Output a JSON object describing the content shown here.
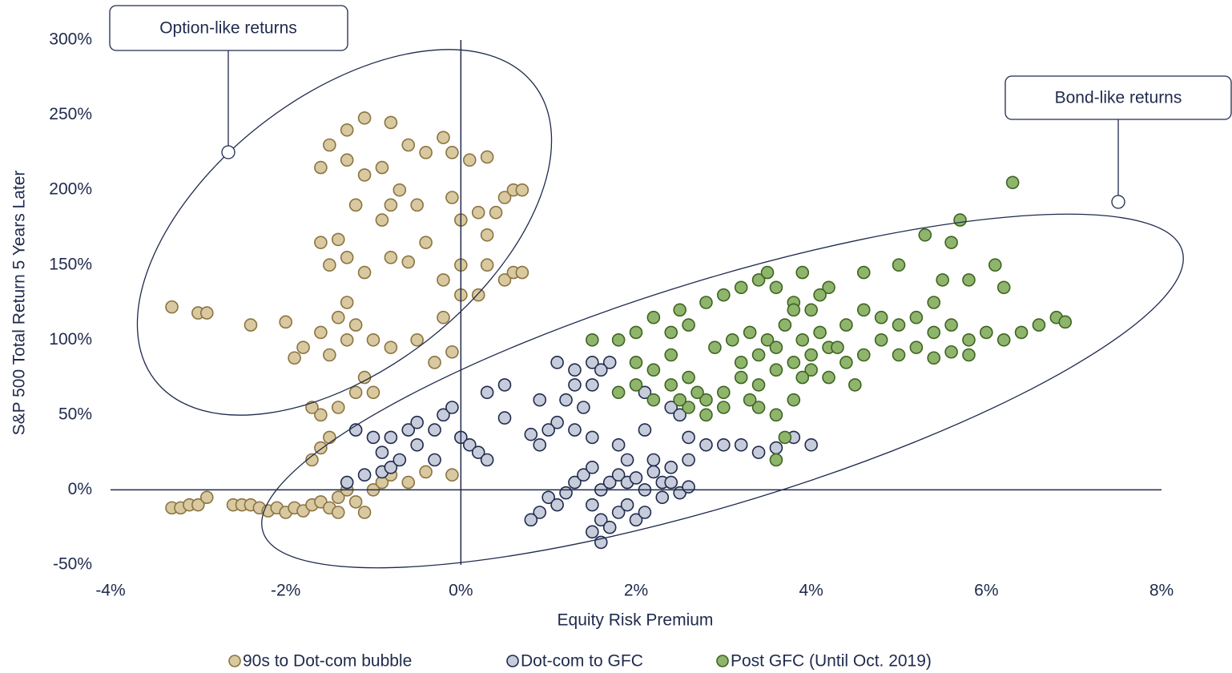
{
  "chart_data": {
    "type": "scatter",
    "x_label": "Equity Risk Premium",
    "y_label": "S&P 500 Total Return 5 Years Later",
    "annotations": [
      "Option-like returns",
      "Bond-like returns"
    ],
    "legend": "bottom",
    "xlim": [
      -4,
      8
    ],
    "ylim": [
      -50,
      300
    ],
    "xticks": [
      {
        "value": -4,
        "label": "-4%"
      },
      {
        "value": -2,
        "label": "-2%"
      },
      {
        "value": 0,
        "label": "0%"
      },
      {
        "value": 2,
        "label": "2%"
      },
      {
        "value": 4,
        "label": "4%"
      },
      {
        "value": 6,
        "label": "6%"
      },
      {
        "value": 8,
        "label": "8%"
      }
    ],
    "yticks": [
      {
        "value": -50,
        "label": "-50%"
      },
      {
        "value": 0,
        "label": "0%"
      },
      {
        "value": 50,
        "label": "50%"
      },
      {
        "value": 100,
        "label": "100%"
      },
      {
        "value": 150,
        "label": "150%"
      },
      {
        "value": 200,
        "label": "200%"
      },
      {
        "value": 250,
        "label": "250%"
      },
      {
        "value": 300,
        "label": "300%"
      }
    ],
    "series": [
      {
        "name": "90s to Dot-com bubble",
        "color": "#d9c9a0",
        "edge_color": "#8b7340",
        "x": [
          -3.3,
          -3.2,
          -3.1,
          -3.0,
          -2.9,
          -2.6,
          -2.5,
          -2.4,
          -2.3,
          -2.2,
          -2.1,
          -2.0,
          -1.9,
          -1.8,
          -1.7,
          -1.6,
          -1.5,
          -1.4,
          -1.4,
          -1.3,
          -1.2,
          -1.1,
          -1.0,
          -0.9,
          -0.8,
          -0.6,
          -0.4,
          -0.1,
          -1.7,
          -1.6,
          -1.5,
          -1.6,
          -1.4,
          -1.7,
          -1.2,
          -1.0,
          -1.1,
          -1.5,
          -1.8,
          -1.9,
          -1.6,
          -1.3,
          -1.0,
          -0.8,
          -0.5,
          -0.3,
          -0.1,
          -0.2,
          -1.4,
          -1.3,
          -1.2,
          -2.4,
          -3.3,
          -3.0,
          -2.9,
          -2.0,
          -1.5,
          -1.3,
          -1.1,
          -0.8,
          -0.6,
          -0.4,
          -1.6,
          -1.4,
          -0.7,
          -0.9,
          -1.1,
          -1.3,
          -1.6,
          -1.5,
          -1.3,
          -1.1,
          -0.8,
          -0.6,
          -0.4,
          -0.2,
          -0.1,
          0.1,
          0.3,
          -0.5,
          -0.1,
          0.0,
          0.2,
          0.3,
          0.4,
          0.5,
          0.6,
          0.7,
          0.3,
          0.5,
          0.6,
          0.7,
          0.2,
          0.0,
          -0.8,
          -0.2,
          0.0,
          -1.2,
          -0.9
        ],
        "values": [
          -12,
          -12,
          -10,
          -10,
          -5,
          -10,
          -10,
          -10,
          -12,
          -14,
          -12,
          -15,
          -12,
          -14,
          -10,
          -8,
          -12,
          -5,
          -15,
          0,
          -8,
          -15,
          0,
          5,
          10,
          5,
          12,
          10,
          20,
          28,
          35,
          50,
          55,
          55,
          65,
          65,
          75,
          90,
          95,
          88,
          105,
          100,
          100,
          95,
          100,
          85,
          92,
          115,
          115,
          125,
          110,
          110,
          122,
          118,
          118,
          112,
          150,
          155,
          145,
          155,
          152,
          165,
          165,
          167,
          200,
          215,
          210,
          220,
          215,
          230,
          240,
          248,
          245,
          230,
          225,
          235,
          225,
          220,
          222,
          190,
          195,
          180,
          185,
          170,
          185,
          195,
          200,
          200,
          150,
          140,
          145,
          145,
          130,
          150,
          190,
          140,
          130,
          190,
          180
        ]
      },
      {
        "name": "Dot-com to GFC",
        "color": "#c7ccdb",
        "edge_color": "#1f2a4d",
        "x": [
          -1.2,
          -1.0,
          -0.9,
          -0.8,
          -0.6,
          -0.5,
          -0.3,
          -0.2,
          -0.1,
          0.0,
          0.1,
          0.2,
          0.3,
          -0.5,
          -1.1,
          -0.9,
          -0.8,
          -0.7,
          -1.3,
          0.3,
          0.5,
          0.5,
          0.9,
          -0.3,
          1.1,
          1.3,
          1.5,
          1.7,
          1.6,
          1.3,
          1.5,
          1.2,
          1.4,
          1.1,
          1.3,
          1.5,
          1.8,
          2.1,
          1.0,
          0.8,
          0.9,
          1.9,
          2.1,
          2.4,
          2.5,
          2.6,
          2.8,
          3.0,
          3.2,
          3.4,
          3.6,
          3.8,
          4.0,
          2.2,
          2.4,
          2.6,
          1.0,
          1.1,
          1.2,
          1.3,
          1.4,
          1.5,
          1.6,
          1.7,
          1.8,
          1.9,
          2.0,
          2.1,
          2.2,
          2.3,
          1.5,
          1.6,
          1.7,
          1.8,
          1.9,
          2.0,
          2.1,
          2.3,
          2.4,
          1.6,
          1.5,
          0.9,
          0.8,
          2.5,
          2.6
        ],
        "values": [
          40,
          35,
          25,
          35,
          40,
          30,
          40,
          50,
          55,
          35,
          30,
          25,
          20,
          45,
          10,
          12,
          15,
          20,
          5,
          65,
          70,
          48,
          60,
          20,
          85,
          80,
          85,
          85,
          80,
          70,
          70,
          60,
          55,
          45,
          40,
          35,
          30,
          40,
          40,
          37,
          30,
          20,
          65,
          55,
          50,
          35,
          30,
          30,
          30,
          25,
          28,
          35,
          30,
          20,
          15,
          20,
          -5,
          -10,
          -2,
          5,
          10,
          15,
          0,
          5,
          10,
          5,
          8,
          0,
          12,
          5,
          -10,
          -20,
          -25,
          -15,
          -10,
          -20,
          -15,
          -5,
          5,
          -35,
          -28,
          -15,
          -20,
          -2,
          2
        ]
      },
      {
        "name": "Post GFC (Until Oct. 2019)",
        "color": "#8fb56d",
        "edge_color": "#3d6420",
        "x": [
          1.8,
          2.0,
          2.2,
          2.4,
          2.5,
          2.6,
          2.8,
          3.0,
          3.2,
          3.4,
          3.6,
          3.8,
          4.0,
          4.2,
          4.4,
          4.6,
          4.8,
          5.0,
          5.2,
          5.4,
          5.6,
          5.8,
          6.0,
          6.2,
          6.4,
          6.6,
          6.8,
          6.9,
          5.3,
          5.7,
          6.3,
          6.1,
          5.0,
          4.6,
          4.1,
          3.5,
          3.9,
          5.5,
          5.8,
          6.2,
          5.4,
          2.0,
          2.2,
          2.4,
          2.6,
          2.8,
          3.0,
          3.2,
          3.4,
          3.6,
          3.8,
          4.0,
          4.2,
          4.4,
          4.6,
          4.8,
          5.0,
          5.2,
          5.4,
          5.6,
          5.8,
          2.6,
          2.8,
          3.0,
          3.4,
          3.6,
          3.8,
          3.7,
          3.6,
          2.5,
          2.2,
          2.4,
          2.9,
          3.1,
          3.3,
          3.5,
          3.7,
          3.9,
          4.1,
          4.3,
          2.7,
          3.2,
          3.4,
          3.6,
          3.8,
          4.0,
          4.2,
          4.5,
          5.6,
          1.5,
          1.8,
          2.0,
          3.3,
          3.9
        ],
        "values": [
          100,
          105,
          115,
          105,
          120,
          110,
          125,
          130,
          135,
          140,
          135,
          125,
          120,
          135,
          110,
          120,
          115,
          110,
          115,
          105,
          110,
          100,
          105,
          100,
          105,
          110,
          115,
          112,
          170,
          180,
          205,
          150,
          150,
          145,
          130,
          145,
          145,
          140,
          140,
          135,
          125,
          85,
          80,
          70,
          75,
          60,
          65,
          75,
          70,
          80,
          85,
          90,
          95,
          85,
          90,
          100,
          90,
          95,
          88,
          92,
          90,
          55,
          50,
          55,
          55,
          50,
          60,
          35,
          20,
          60,
          60,
          90,
          95,
          100,
          105,
          100,
          110,
          100,
          105,
          95,
          65,
          85,
          90,
          95,
          120,
          80,
          75,
          70,
          165,
          100,
          65,
          70,
          60,
          75
        ]
      }
    ]
  }
}
